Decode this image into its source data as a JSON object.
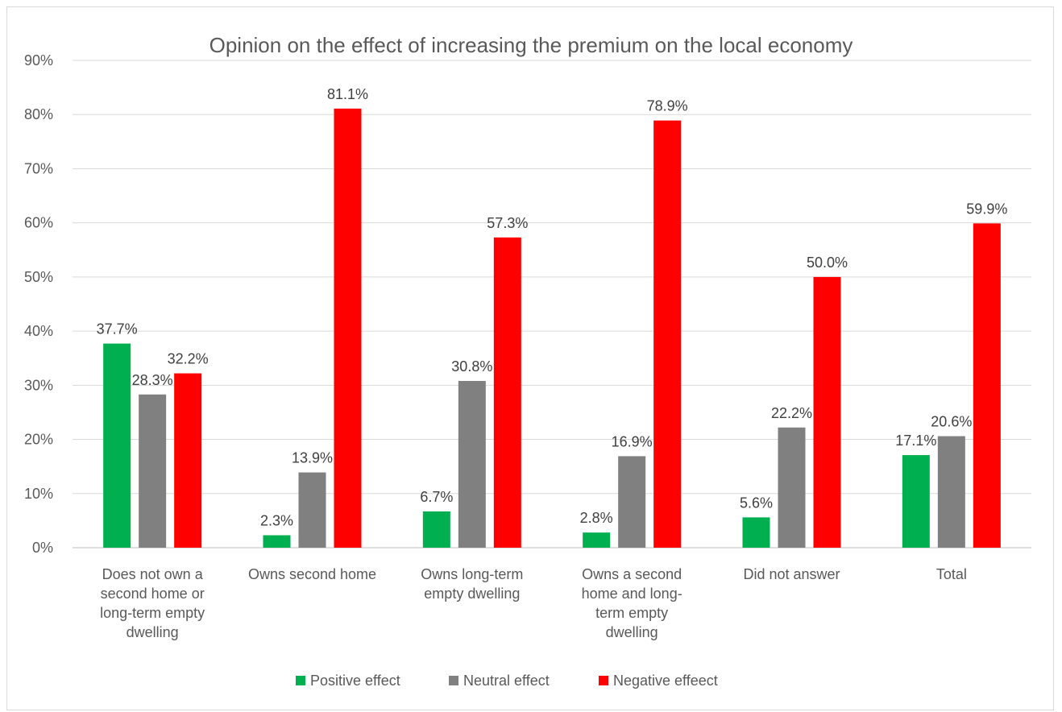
{
  "chart_data": {
    "type": "bar",
    "title": "Opinion on the effect of increasing the premium on the local economy",
    "categories": [
      [
        "Does not own a",
        "second home or",
        "long-term empty",
        "dwelling"
      ],
      [
        "Owns second home"
      ],
      [
        "Owns long-term",
        "empty dwelling"
      ],
      [
        "Owns a second",
        "home and long-",
        "term empty",
        "dwelling"
      ],
      [
        "Did not answer"
      ],
      [
        "Total"
      ]
    ],
    "series": [
      {
        "name": "Positive effect",
        "color": "#00b050",
        "values": [
          37.7,
          2.3,
          6.7,
          2.8,
          5.6,
          17.1
        ],
        "labels": [
          "37.7%",
          "2.3%",
          "6.7%",
          "2.8%",
          "5.6%",
          "17.1%"
        ]
      },
      {
        "name": "Neutral effect",
        "color": "#808080",
        "values": [
          28.3,
          13.9,
          30.8,
          16.9,
          22.2,
          20.6
        ],
        "labels": [
          "28.3%",
          "13.9%",
          "30.8%",
          "16.9%",
          "22.2%",
          "20.6%"
        ]
      },
      {
        "name": "Negative effeect",
        "color": "#ff0000",
        "values": [
          32.2,
          81.1,
          57.3,
          78.9,
          50.0,
          59.9
        ],
        "labels": [
          "32.2%",
          "81.1%",
          "57.3%",
          "78.9%",
          "50.0%",
          "59.9%"
        ]
      }
    ],
    "ylim": [
      0,
      90
    ],
    "yticks": [
      0,
      10,
      20,
      30,
      40,
      50,
      60,
      70,
      80,
      90
    ],
    "ytick_labels": [
      "0%",
      "10%",
      "20%",
      "30%",
      "40%",
      "50%",
      "60%",
      "70%",
      "80%",
      "90%"
    ],
    "grid": true,
    "legend_position": "bottom"
  }
}
